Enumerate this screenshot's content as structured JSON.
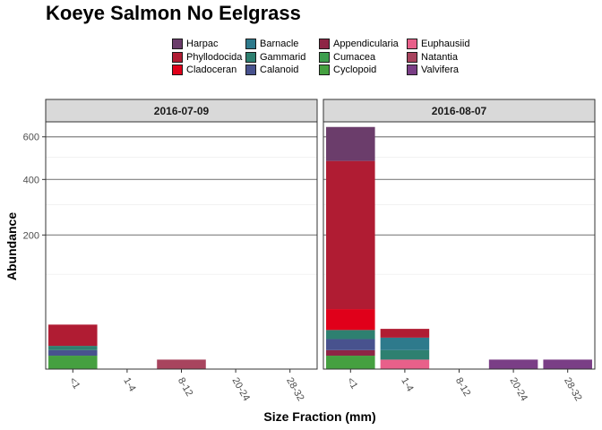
{
  "chart_data": {
    "type": "bar",
    "stacked": true,
    "title": "Koeye Salmon No Eelgrass",
    "xlabel": "Size Fraction (mm)",
    "ylabel": "Abundance",
    "y_scale": "sqrt",
    "yticks": [
      200,
      400,
      600
    ],
    "ylim": [
      0,
      680
    ],
    "categories": [
      "<1",
      "1-4",
      "8-12",
      "20-24",
      "28-32"
    ],
    "legend": [
      {
        "name": "Harpac",
        "color": "#6B3D6B"
      },
      {
        "name": "Phyllodocida",
        "color": "#B01C33"
      },
      {
        "name": "Cladoceran",
        "color": "#E0001A"
      },
      {
        "name": "Barnacle",
        "color": "#2E7A8C"
      },
      {
        "name": "Gammarid",
        "color": "#2E8070"
      },
      {
        "name": "Calanoid",
        "color": "#48528E"
      },
      {
        "name": "Appendicularia",
        "color": "#8E2545"
      },
      {
        "name": "Cumacea",
        "color": "#3E9E4E"
      },
      {
        "name": "Cyclopoid",
        "color": "#45A040"
      },
      {
        "name": "Euphausiid",
        "color": "#E8608A"
      },
      {
        "name": "Natantia",
        "color": "#A8445E"
      },
      {
        "name": "Valvifera",
        "color": "#7A3E86"
      }
    ],
    "panels": [
      {
        "strip": "2016-07-09",
        "bars": [
          {
            "category": "<1",
            "segments": [
              {
                "name": "Cyclopoid",
                "value": 2
              },
              {
                "name": "Calanoid",
                "value": 4
              },
              {
                "name": "Gammarid",
                "value": 6
              },
              {
                "name": "Phyllodocida",
                "value": 22
              }
            ]
          },
          {
            "category": "8-12",
            "segments": [
              {
                "name": "Natantia",
                "value": 1
              }
            ]
          }
        ]
      },
      {
        "strip": "2016-08-07",
        "bars": [
          {
            "category": "<1",
            "segments": [
              {
                "name": "Cyclopoid",
                "value": 2
              },
              {
                "name": "Appendicularia",
                "value": 4
              },
              {
                "name": "Calanoid",
                "value": 10
              },
              {
                "name": "Gammarid",
                "value": 17
              },
              {
                "name": "Cladoceran",
                "value": 40
              },
              {
                "name": "Phyllodocida",
                "value": 482
              },
              {
                "name": "Harpac",
                "value": 652
              }
            ]
          },
          {
            "category": "1-4",
            "segments": [
              {
                "name": "Euphausiid",
                "value": 1
              },
              {
                "name": "Gammarid",
                "value": 4
              },
              {
                "name": "Barnacle",
                "value": 11
              },
              {
                "name": "Phyllodocida",
                "value": 18
              }
            ]
          },
          {
            "category": "20-24",
            "segments": [
              {
                "name": "Valvifera",
                "value": 1
              }
            ]
          },
          {
            "category": "28-32",
            "segments": [
              {
                "name": "Valvifera",
                "value": 1
              }
            ]
          }
        ]
      }
    ]
  }
}
